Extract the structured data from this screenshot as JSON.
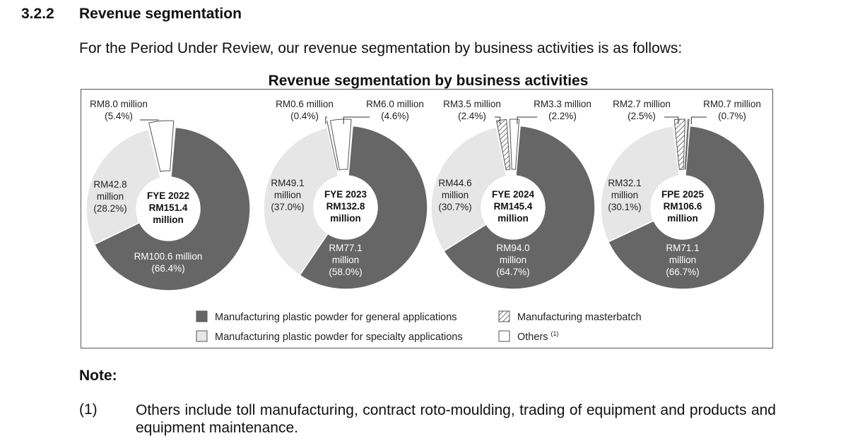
{
  "section": {
    "number": "3.2.2",
    "title": "Revenue segmentation",
    "intro": "For the Period Under Review, our revenue segmentation by business activities is as follows:"
  },
  "chart_data": {
    "type": "pie",
    "title": "Revenue segmentation by business activities",
    "series_names": [
      "Manufacturing plastic powder for general applications",
      "Manufacturing plastic powder for specialty applications",
      "Manufacturing masterbatch",
      "Others"
    ],
    "legend": [
      {
        "label": "Manufacturing plastic powder for general applications",
        "color": "#666666",
        "pattern": "solid"
      },
      {
        "label": "Manufacturing plastic powder for specialty applications",
        "color": "#e6e6e6",
        "pattern": "solid"
      },
      {
        "label": "Manufacturing masterbatch",
        "color": "#ffffff",
        "pattern": "hatched"
      },
      {
        "label": "Others",
        "color": "#ffffff",
        "pattern": "solid",
        "note_ref": "(1)"
      }
    ],
    "legend_placement": "bottom",
    "charts": [
      {
        "period_label": "FYE 2022",
        "total_label": "RM151.4",
        "total_unit": "million",
        "segments": [
          {
            "name": "Manufacturing plastic powder for general applications",
            "value": 100.6,
            "percent": 66.4,
            "label": [
              "RM100.6 million",
              "(66.4%)"
            ]
          },
          {
            "name": "Manufacturing plastic powder for specialty applications",
            "value": 42.8,
            "percent": 28.2,
            "label": [
              "RM42.8",
              "million",
              "(28.2%)"
            ]
          },
          {
            "name": "Others",
            "value": 8.0,
            "percent": 5.4,
            "label": [
              "RM8.0 million",
              "(5.4%)"
            ]
          }
        ]
      },
      {
        "period_label": "FYE 2023",
        "total_label": "RM132.8",
        "total_unit": "million",
        "segments": [
          {
            "name": "Manufacturing plastic powder for general applications",
            "value": 77.1,
            "percent": 58.0,
            "label": [
              "RM77.1",
              "million",
              "(58.0%)"
            ]
          },
          {
            "name": "Manufacturing plastic powder for specialty applications",
            "value": 49.1,
            "percent": 37.0,
            "label": [
              "RM49.1",
              "million",
              "(37.0%)"
            ]
          },
          {
            "name": "Manufacturing masterbatch",
            "value": 0.6,
            "percent": 0.4,
            "label": [
              "RM0.6 million",
              "(0.4%)"
            ]
          },
          {
            "name": "Others",
            "value": 6.0,
            "percent": 4.6,
            "label": [
              "RM6.0 million",
              "(4.6%)"
            ]
          }
        ]
      },
      {
        "period_label": "FYE 2024",
        "total_label": "RM145.4",
        "total_unit": "million",
        "segments": [
          {
            "name": "Manufacturing plastic powder for general applications",
            "value": 94.0,
            "percent": 64.7,
            "label": [
              "RM94.0",
              "million",
              "(64.7%)"
            ]
          },
          {
            "name": "Manufacturing plastic powder for specialty applications",
            "value": 44.6,
            "percent": 30.7,
            "label": [
              "RM44.6",
              "million",
              "(30.7%)"
            ]
          },
          {
            "name": "Manufacturing masterbatch",
            "value": 3.5,
            "percent": 2.4,
            "label": [
              "RM3.5 million",
              "(2.4%)"
            ]
          },
          {
            "name": "Others",
            "value": 3.3,
            "percent": 2.2,
            "label": [
              "RM3.3 million",
              "(2.2%)"
            ]
          }
        ]
      },
      {
        "period_label": "FPE 2025",
        "total_label": "RM106.6",
        "total_unit": "million",
        "segments": [
          {
            "name": "Manufacturing plastic powder for general applications",
            "value": 71.1,
            "percent": 66.7,
            "label": [
              "RM71.1",
              "million",
              "(66.7%)"
            ]
          },
          {
            "name": "Manufacturing plastic powder for specialty applications",
            "value": 32.1,
            "percent": 30.1,
            "label": [
              "RM32.1",
              "million",
              "(30.1%)"
            ]
          },
          {
            "name": "Manufacturing masterbatch",
            "value": 2.7,
            "percent": 2.5,
            "label": [
              "RM2.7 million",
              "(2.5%)"
            ]
          },
          {
            "name": "Others",
            "value": 0.7,
            "percent": 0.7,
            "label": [
              "RM0.7 million",
              "(0.7%)"
            ]
          }
        ]
      }
    ]
  },
  "note": {
    "heading": "Note:",
    "number": "(1)",
    "text": "Others include toll manufacturing, contract roto-moulding, trading of equipment and products and equipment maintenance."
  }
}
